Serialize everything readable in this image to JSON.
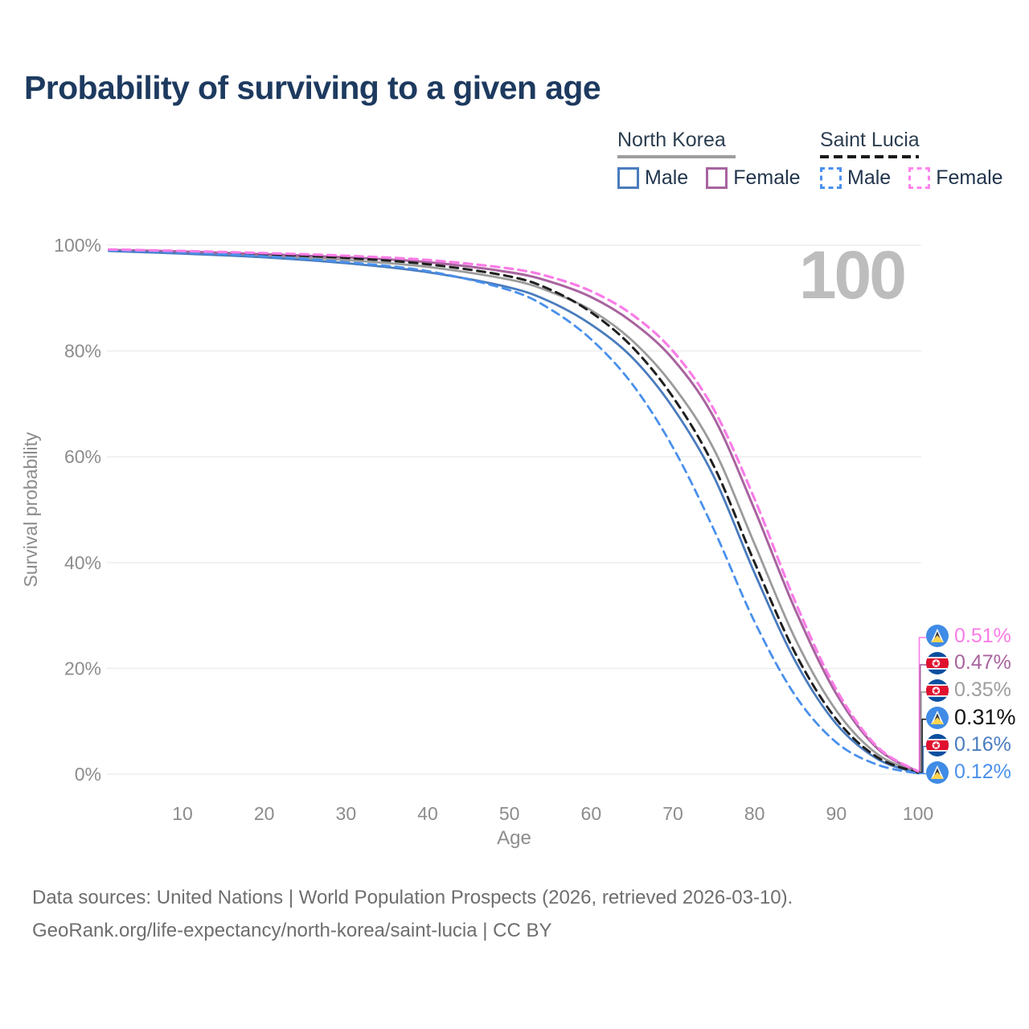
{
  "page": {
    "title": "Probability of surviving to a given age",
    "hover_age_display": "100",
    "footer_line1": "Data sources: United Nations | World Population Prospects (2026, retrieved 2026-03-10).",
    "footer_line2": "GeoRank.org/life-expectancy/north-korea/saint-lucia | CC BY"
  },
  "legend": {
    "groups": [
      {
        "label": "North Korea",
        "underline_style": "solid",
        "underline_color": "#9e9e9e",
        "items": [
          {
            "label": "Male",
            "border_color": "#4a7cbe",
            "dashed": false
          },
          {
            "label": "Female",
            "border_color": "#a8639f",
            "dashed": false
          }
        ]
      },
      {
        "label": "Saint Lucia",
        "underline_style": "dashed",
        "underline_color": "#1a1a1a",
        "items": [
          {
            "label": "Male",
            "border_color": "#4a90ec",
            "dashed": true
          },
          {
            "label": "Female",
            "border_color": "#ff85ec",
            "dashed": true
          }
        ]
      }
    ]
  },
  "chart_data": {
    "type": "line",
    "title": "Probability of surviving to a given age",
    "xlabel": "Age",
    "ylabel": "Survival probability",
    "hover_age": 100,
    "xlim": [
      1,
      100
    ],
    "ylim": [
      0,
      100
    ],
    "x_ticks": [
      10,
      20,
      30,
      40,
      50,
      60,
      70,
      80,
      90,
      100
    ],
    "y_ticks_pct": [
      0,
      20,
      40,
      60,
      80,
      100
    ],
    "grid": "horizontal-only",
    "legend_position": "top-right",
    "x": [
      1,
      10,
      20,
      30,
      40,
      50,
      55,
      60,
      65,
      70,
      75,
      80,
      85,
      90,
      95,
      100
    ],
    "series": [
      {
        "name": "Saint Lucia Female",
        "country": "Saint Lucia",
        "sex": "Female",
        "color": "#f97ce6",
        "dash": true,
        "width": 3.2,
        "flag": "lc",
        "end_label": "0.51%",
        "label_color": "#f97ce6",
        "emph": false,
        "values": [
          99.2,
          98.9,
          98.5,
          98.0,
          97.2,
          95.6,
          94.0,
          91.3,
          86.9,
          80.0,
          69.0,
          52.0,
          32.5,
          16.0,
          5.2,
          0.51
        ]
      },
      {
        "name": "North Korea Female",
        "country": "North Korea",
        "sex": "Female",
        "color": "#a8639f",
        "dash": false,
        "width": 3,
        "flag": "kp",
        "end_label": "0.47%",
        "label_color": "#a8639f",
        "emph": false,
        "values": [
          99.1,
          98.8,
          98.3,
          97.7,
          96.8,
          94.9,
          93.1,
          90.2,
          85.5,
          78.5,
          67.5,
          50.0,
          31.0,
          15.2,
          4.9,
          0.47
        ]
      },
      {
        "name": "North Korea Both sexes",
        "country": "North Korea",
        "sex": "Both",
        "color": "#9b9b9b",
        "dash": false,
        "width": 2.8,
        "flag": "kp",
        "end_label": "0.35%",
        "label_color": "#9e9e9e",
        "emph": false,
        "values": [
          99.0,
          98.6,
          98.0,
          97.2,
          95.9,
          93.5,
          91.2,
          87.7,
          82.0,
          73.5,
          61.5,
          43.5,
          25.5,
          12.0,
          3.8,
          0.35
        ]
      },
      {
        "name": "Saint Lucia Both sexes",
        "country": "Saint Lucia",
        "sex": "Both",
        "color": "#1f1f1f",
        "dash": true,
        "width": 3,
        "flag": "lc",
        "end_label": "0.31%",
        "label_color": "#111111",
        "emph": true,
        "values": [
          99.1,
          98.8,
          98.3,
          97.6,
          96.4,
          94.1,
          91.6,
          87.3,
          80.8,
          71.3,
          58.3,
          40.0,
          22.8,
          10.4,
          3.2,
          0.31
        ]
      },
      {
        "name": "North Korea Male",
        "country": "North Korea",
        "sex": "Male",
        "color": "#4a7cbe",
        "dash": false,
        "width": 2.8,
        "flag": "kp",
        "end_label": "0.16%",
        "label_color": "#4a7cbe",
        "emph": false,
        "values": [
          98.9,
          98.4,
          97.7,
          96.6,
          94.9,
          92.0,
          89.3,
          85.0,
          78.8,
          69.3,
          56.3,
          38.0,
          21.3,
          9.5,
          2.9,
          0.16
        ]
      },
      {
        "name": "Saint Lucia Male",
        "country": "Saint Lucia",
        "sex": "Male",
        "color": "#4a90ec",
        "dash": true,
        "width": 2.8,
        "flag": "lc",
        "end_label": "0.12%",
        "label_color": "#4a90ec",
        "emph": false,
        "values": [
          99.0,
          98.6,
          97.9,
          96.8,
          95.1,
          91.5,
          87.9,
          82.2,
          73.8,
          61.8,
          46.3,
          28.8,
          14.8,
          6.0,
          1.8,
          0.12
        ]
      }
    ]
  }
}
